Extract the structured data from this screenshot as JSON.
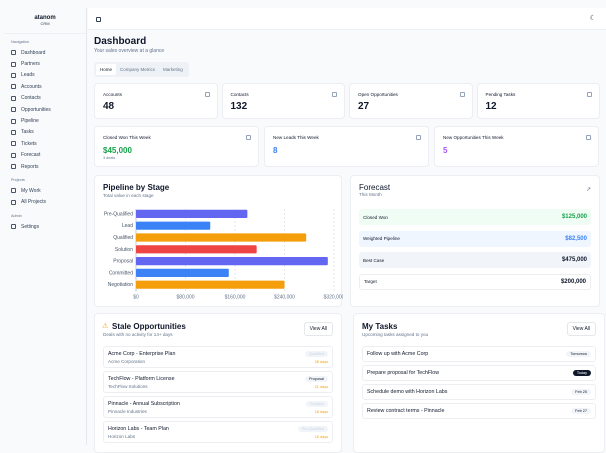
{
  "brand": {
    "name": "atanom",
    "sub": "CRM"
  },
  "sidebar": {
    "sections": [
      {
        "title": "Navigation",
        "items": [
          "Dashboard",
          "Partners",
          "Leads",
          "Accounts",
          "Contacts",
          "Opportunities",
          "Pipeline",
          "Tasks",
          "Tickets",
          "Forecast",
          "Reports"
        ]
      },
      {
        "title": "Projects",
        "items": [
          "My Work",
          "All Projects"
        ]
      },
      {
        "title": "Admin",
        "items": [
          "Settings"
        ]
      }
    ]
  },
  "page": {
    "title": "Dashboard",
    "subtitle": "Your sales overview at a glance"
  },
  "tabs": [
    "Home",
    "Company Metrics",
    "Marketing"
  ],
  "stats": [
    {
      "label": "Accounts",
      "value": "48"
    },
    {
      "label": "Contacts",
      "value": "132"
    },
    {
      "label": "Open Opportunities",
      "value": "27"
    },
    {
      "label": "Pending Tasks",
      "value": "12"
    }
  ],
  "weekly": [
    {
      "label": "Closed Won This Week",
      "value": "$45,000",
      "note": "3 deals",
      "color": "#16a34a"
    },
    {
      "label": "New Leads This Week",
      "value": "8",
      "color": "#3b82f6"
    },
    {
      "label": "New Opportunities This Week",
      "value": "5",
      "color": "#a855f7"
    }
  ],
  "chart_data": {
    "type": "bar",
    "orientation": "horizontal",
    "title": "Pipeline by Stage",
    "subtitle": "Total value in each stage",
    "categories": [
      "Pre-Qualified",
      "Lead",
      "Qualified",
      "Solution",
      "Proposal",
      "Committed",
      "Negotiation"
    ],
    "values": [
      180000,
      120000,
      275000,
      195000,
      310000,
      150000,
      240000
    ],
    "colors": [
      "#6366f1",
      "#3b82f6",
      "#f59e0b",
      "#ef4444",
      "#6366f1",
      "#3b82f6",
      "#f59e0b"
    ],
    "xlim": [
      0,
      320000
    ],
    "ticks": [
      "$0",
      "$80,000",
      "$160,000",
      "$240,000",
      "$320,000"
    ],
    "grid": true
  },
  "forecast": {
    "title": "Forecast",
    "subtitle": "This Month",
    "rows": [
      {
        "label": "Closed Won",
        "value": "$125,000",
        "bg": "#f0fdf4",
        "color": "#16a34a"
      },
      {
        "label": "Weighted Pipeline",
        "value": "$82,500",
        "bg": "#eff6ff",
        "color": "#3b82f6"
      },
      {
        "label": "Best Case",
        "value": "$475,000",
        "bg": "#f1f5f9",
        "color": "#0f172a"
      },
      {
        "label": "Target",
        "value": "$200,000",
        "bg": "#ffffff",
        "color": "#0f172a"
      }
    ]
  },
  "stale": {
    "title": "Stale Opportunities",
    "subtitle": "Deals with no activity for 14+ days",
    "view_all": "View All",
    "items": [
      {
        "title": "Acme Corp - Enterprise Plan",
        "company": "Acme Corporation",
        "stage": "Qualified",
        "days": "28 days"
      },
      {
        "title": "TechFlow - Platform License",
        "company": "TechFlow Solutions",
        "stage": "Proposal",
        "days": "21 days"
      },
      {
        "title": "Pinnacle - Annual Subscription",
        "company": "Pinnacle Industries",
        "stage": "Solution",
        "days": "18 days"
      },
      {
        "title": "Horizon Labs - Team Plan",
        "company": "Horizon Labs",
        "stage": "Pre-Qualified",
        "days": "16 days"
      }
    ]
  },
  "tasks": {
    "title": "My Tasks",
    "subtitle": "Upcoming tasks assigned to you",
    "view_all": "View All",
    "items": [
      {
        "title": "Follow up with Acme Corp",
        "due": "Tomorrow"
      },
      {
        "title": "Prepare proposal for TechFlow",
        "due": "Today"
      },
      {
        "title": "Schedule demo with Horizon Labs",
        "due": "Feb 25"
      },
      {
        "title": "Review contract terms - Pinnacle",
        "due": "Feb 27"
      }
    ]
  }
}
